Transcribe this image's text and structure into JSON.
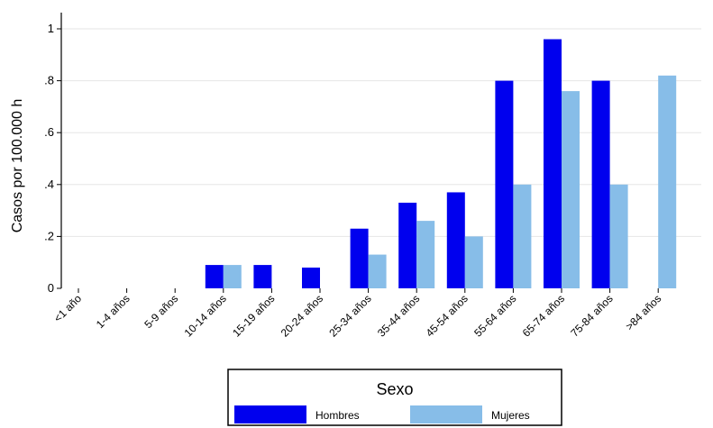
{
  "chart_data": {
    "type": "bar",
    "ylabel": "Casos por 100.000 h",
    "xlabel": "",
    "ylim": [
      0,
      1.0
    ],
    "yticks": [
      {
        "value": 0,
        "label": "0"
      },
      {
        "value": 0.2,
        "label": ".2"
      },
      {
        "value": 0.4,
        "label": ".4"
      },
      {
        "value": 0.6,
        "label": ".6"
      },
      {
        "value": 0.8,
        "label": ".8"
      },
      {
        "value": 1.0,
        "label": "1"
      }
    ],
    "grid": true,
    "categories": [
      "<1 año",
      "1-4 años",
      "5-9 años",
      "10-14 años",
      "15-19 años",
      "20-24 años",
      "25-34 años",
      "35-44 años",
      "45-54 años",
      "55-64 años",
      "65-74 años",
      "75-84 años",
      ">84 años"
    ],
    "series": [
      {
        "name": "Hombres",
        "color": "#0000EE",
        "values": [
          0,
          0,
          0,
          0.09,
          0.09,
          0.08,
          0.23,
          0.33,
          0.37,
          0.8,
          0.96,
          0.8,
          0
        ]
      },
      {
        "name": "Mujeres",
        "color": "#87BDE8",
        "values": [
          0,
          0,
          0,
          0.09,
          0,
          0,
          0.13,
          0.26,
          0.2,
          0.4,
          0.76,
          0.4,
          0.82
        ]
      }
    ],
    "legend": {
      "title": "Sexo",
      "position": "bottom"
    }
  }
}
